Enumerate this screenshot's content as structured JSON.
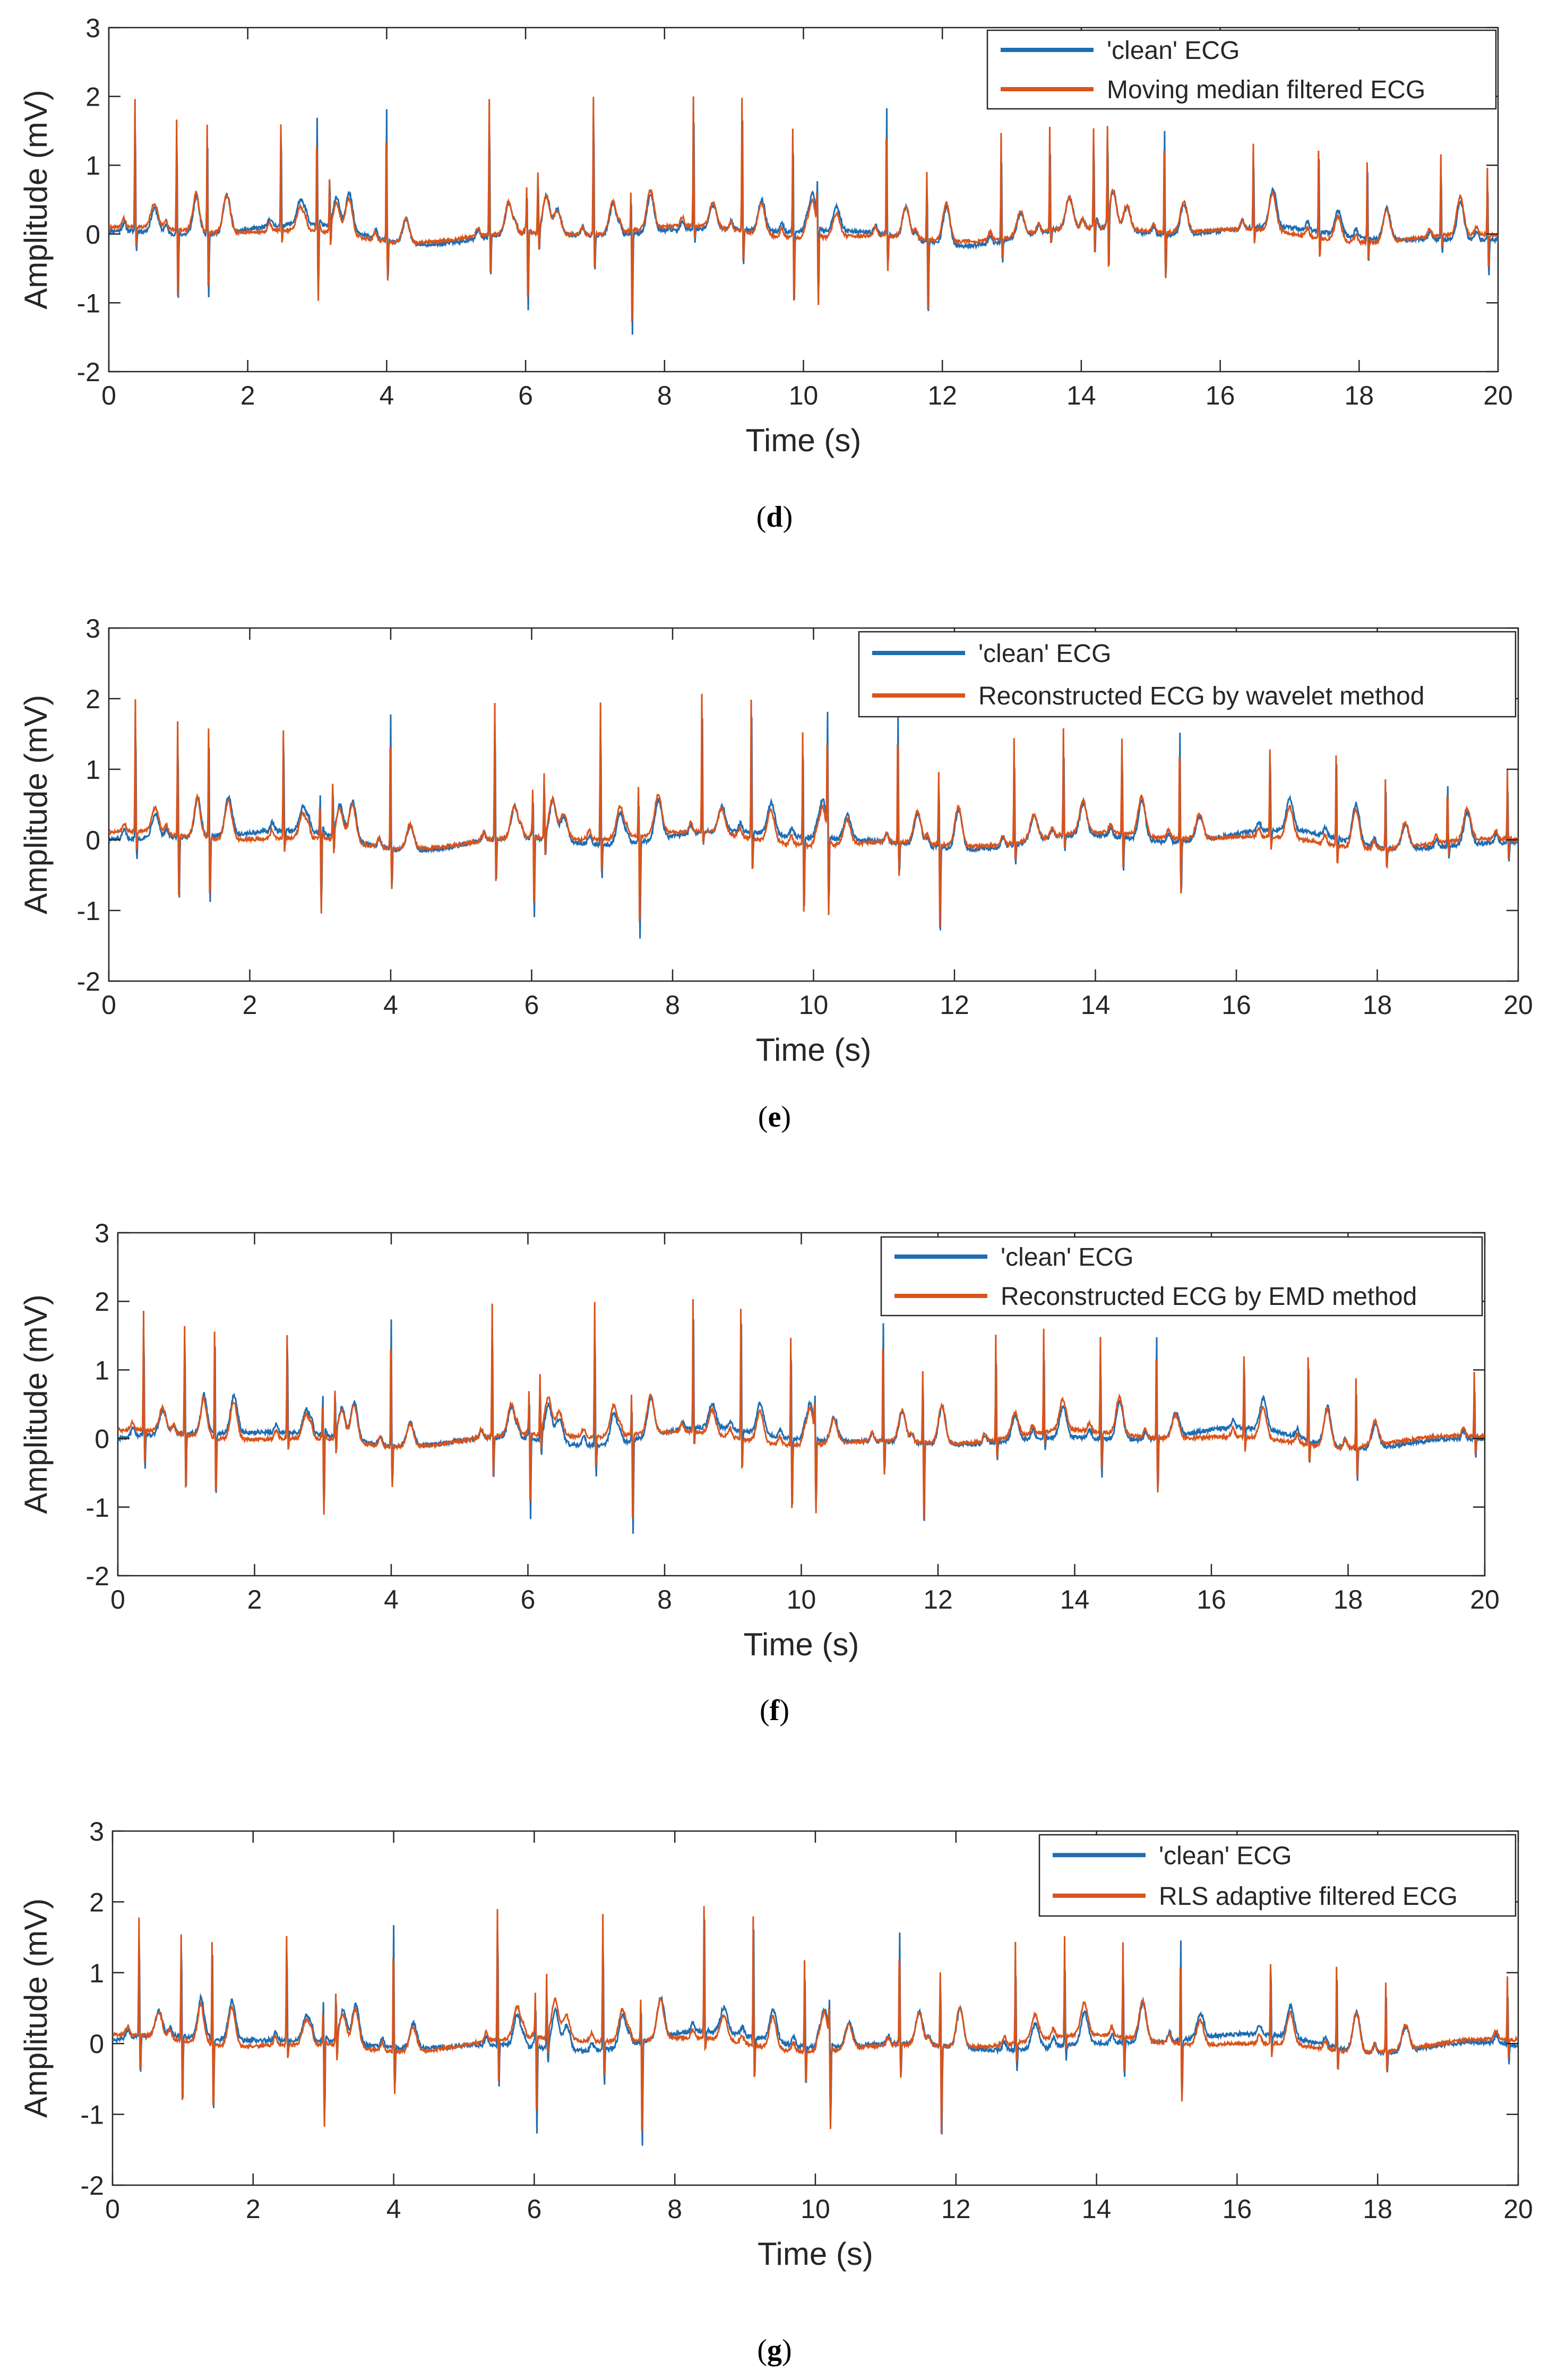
{
  "colors": {
    "clean": "#1f6db3",
    "filtered": "#d9541c",
    "axis": "#262626",
    "background": "#ffffff"
  },
  "chart_data": [
    {
      "type": "line",
      "panel_label": "d",
      "xlabel": "Time (s)",
      "ylabel": "Amplitude (mV)",
      "xlim": [
        0,
        20
      ],
      "ylim": [
        -2,
        3
      ],
      "xticks": [
        "0",
        "2",
        "4",
        "6",
        "8",
        "10",
        "12",
        "14",
        "16",
        "18",
        "20"
      ],
      "yticks": [
        "-2",
        "-1",
        "0",
        "1",
        "2",
        "3"
      ],
      "legend_position": "top-right",
      "r_peaks": [
        0.38,
        0.98,
        1.42,
        2.48,
        3.0,
        3.18,
        4.0,
        5.48,
        6.02,
        6.18,
        6.98,
        7.52,
        8.42,
        9.12,
        9.85,
        10.2,
        11.2,
        11.78,
        12.85,
        13.55,
        14.18,
        14.38,
        15.2,
        16.48,
        17.42,
        18.12,
        19.18,
        19.85
      ],
      "r_amplitudes": [
        1.9,
        1.65,
        1.6,
        1.6,
        1.5,
        0.75,
        1.9,
        2.0,
        0.55,
        0.9,
        2.05,
        0.6,
        1.9,
        1.95,
        1.6,
        0.55,
        1.85,
        1.0,
        1.55,
        1.5,
        1.45,
        1.4,
        1.55,
        1.25,
        1.3,
        1.2,
        1.2,
        1.0
      ],
      "s_depths": [
        -0.3,
        -1.0,
        -0.9,
        -0.2,
        -1.15,
        -0.3,
        -0.6,
        -0.6,
        -1.2,
        -0.3,
        -0.5,
        -1.5,
        -0.2,
        -0.5,
        -1.0,
        -1.1,
        -0.5,
        -1.05,
        -0.3,
        -0.2,
        -0.45,
        -0.85,
        -0.7,
        -0.2,
        -0.3,
        -0.3,
        -0.2,
        -0.5
      ],
      "series": [
        {
          "name": "'clean' ECG"
        },
        {
          "name": "Moving median filtered ECG"
        }
      ]
    },
    {
      "type": "line",
      "panel_label": "e",
      "xlabel": "Time (s)",
      "ylabel": "Amplitude (mV)",
      "xlim": [
        0,
        20
      ],
      "ylim": [
        -2,
        3
      ],
      "xticks": [
        "0",
        "2",
        "4",
        "6",
        "8",
        "10",
        "12",
        "14",
        "16",
        "18",
        "20"
      ],
      "yticks": [
        "-2",
        "-1",
        "0",
        "1",
        "2",
        "3"
      ],
      "legend_position": "top-right",
      "r_peaks": [
        0.38,
        0.98,
        1.42,
        2.48,
        3.0,
        3.18,
        4.0,
        5.48,
        6.02,
        6.18,
        6.98,
        7.52,
        8.42,
        9.12,
        9.85,
        10.2,
        11.2,
        11.78,
        12.85,
        13.55,
        14.38,
        15.2,
        16.48,
        17.42,
        18.12,
        19.0,
        19.85
      ],
      "r_amplitudes": [
        1.9,
        1.65,
        1.6,
        1.55,
        0.5,
        0.75,
        1.9,
        2.0,
        0.55,
        0.9,
        2.0,
        0.7,
        1.95,
        2.0,
        1.6,
        1.6,
        1.85,
        1.1,
        1.5,
        1.5,
        1.4,
        1.55,
        1.25,
        1.3,
        1.0,
        0.85,
        1.0
      ],
      "s_depths": [
        -0.3,
        -0.9,
        -0.9,
        -0.2,
        -1.2,
        -0.3,
        -0.6,
        -0.6,
        -1.2,
        -0.3,
        -0.5,
        -1.4,
        -0.2,
        -0.5,
        -1.0,
        -1.1,
        -0.5,
        -1.2,
        -0.3,
        -0.2,
        -0.5,
        -0.8,
        -0.2,
        -0.3,
        -0.3,
        -0.2,
        -0.3
      ],
      "series": [
        {
          "name": "'clean' ECG"
        },
        {
          "name": "Reconstructed ECG by wavelet method"
        }
      ]
    },
    {
      "type": "line",
      "panel_label": "f",
      "xlabel": "Time (s)",
      "ylabel": "Amplitude (mV)",
      "xlim": [
        0,
        20
      ],
      "ylim": [
        -2,
        3
      ],
      "xticks": [
        "0",
        "2",
        "4",
        "6",
        "8",
        "10",
        "12",
        "14",
        "16",
        "18",
        "20"
      ],
      "yticks": [
        "-2",
        "-1",
        "0",
        "1",
        "2",
        "3"
      ],
      "legend_position": "top-right",
      "r_peaks": [
        0.38,
        0.98,
        1.42,
        2.48,
        3.0,
        3.18,
        4.0,
        5.48,
        6.02,
        6.18,
        6.98,
        7.52,
        8.42,
        9.12,
        9.85,
        10.2,
        11.2,
        11.78,
        12.85,
        13.55,
        14.38,
        15.2,
        16.48,
        17.42,
        18.12,
        19.85
      ],
      "r_amplitudes": [
        1.8,
        1.65,
        1.6,
        1.55,
        0.5,
        0.7,
        1.85,
        2.0,
        0.55,
        0.9,
        2.0,
        0.6,
        1.95,
        1.9,
        1.6,
        0.5,
        1.75,
        1.1,
        1.55,
        1.5,
        1.4,
        1.5,
        1.2,
        1.3,
        1.0,
        0.95
      ],
      "s_depths": [
        -0.5,
        -0.8,
        -0.9,
        -0.2,
        -1.25,
        -0.3,
        -0.6,
        -0.6,
        -1.25,
        -0.3,
        -0.5,
        -1.4,
        -0.2,
        -0.5,
        -1.0,
        -1.15,
        -0.5,
        -1.2,
        -0.3,
        -0.2,
        -0.6,
        -0.8,
        -0.2,
        -0.3,
        -0.5,
        -0.3
      ],
      "series": [
        {
          "name": "'clean' ECG"
        },
        {
          "name": "Reconstructed ECG by EMD method"
        }
      ]
    },
    {
      "type": "line",
      "panel_label": "g",
      "xlabel": "Time (s)",
      "ylabel": "Amplitude (mV)",
      "xlim": [
        0,
        20
      ],
      "ylim": [
        -2,
        3
      ],
      "xticks": [
        "0",
        "2",
        "4",
        "6",
        "8",
        "10",
        "12",
        "14",
        "16",
        "18",
        "20"
      ],
      "yticks": [
        "-2",
        "-1",
        "0",
        "1",
        "2",
        "3"
      ],
      "legend_position": "top-right",
      "r_peaks": [
        0.38,
        0.98,
        1.42,
        2.48,
        3.0,
        3.18,
        4.0,
        5.48,
        6.02,
        6.18,
        6.98,
        7.52,
        8.42,
        9.12,
        9.85,
        10.2,
        11.2,
        11.78,
        12.85,
        13.55,
        14.38,
        15.2,
        16.48,
        17.42,
        18.12,
        19.85
      ],
      "r_amplitudes": [
        1.7,
        1.55,
        1.5,
        1.55,
        0.5,
        0.7,
        1.75,
        1.9,
        0.55,
        0.9,
        1.85,
        0.6,
        1.9,
        1.85,
        1.3,
        0.5,
        1.6,
        1.1,
        1.45,
        1.4,
        1.35,
        1.45,
        1.15,
        1.2,
        1.0,
        0.9
      ],
      "s_depths": [
        -0.5,
        -0.9,
        -1.0,
        -0.2,
        -1.3,
        -0.3,
        -0.6,
        -0.6,
        -1.3,
        -0.3,
        -0.5,
        -1.5,
        -0.2,
        -0.5,
        -0.5,
        -1.25,
        -0.5,
        -1.3,
        -0.3,
        -0.2,
        -0.5,
        -0.85,
        -0.2,
        -0.3,
        -0.3,
        -0.3
      ],
      "series": [
        {
          "name": "'clean' ECG"
        },
        {
          "name": "RLS adaptive filtered ECG"
        }
      ]
    }
  ]
}
